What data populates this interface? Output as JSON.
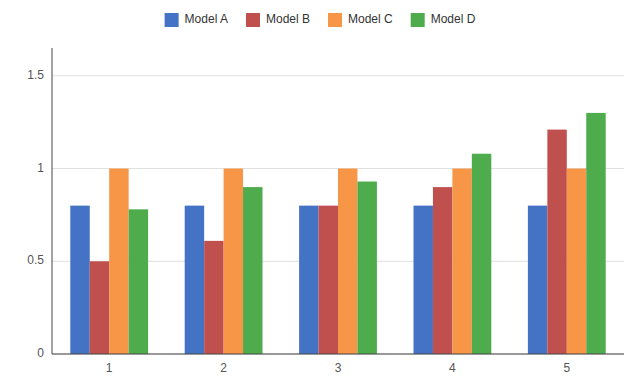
{
  "chart_data": {
    "type": "bar",
    "categories": [
      "1",
      "2",
      "3",
      "4",
      "5"
    ],
    "series": [
      {
        "name": "Model A",
        "color": "#4472C4",
        "values": [
          0.8,
          0.8,
          0.8,
          0.8,
          0.8
        ]
      },
      {
        "name": "Model B",
        "color": "#C0504D",
        "values": [
          0.5,
          0.61,
          0.8,
          0.9,
          1.21
        ]
      },
      {
        "name": "Model C",
        "color": "#F79646",
        "values": [
          1.0,
          1.0,
          1.0,
          1.0,
          1.0
        ]
      },
      {
        "name": "Model D",
        "color": "#4EAC4C",
        "values": [
          0.78,
          0.9,
          0.93,
          1.08,
          1.3
        ]
      }
    ],
    "ylim": [
      0,
      1.65
    ],
    "yticks": [
      0,
      0.5,
      1,
      1.5
    ],
    "grid": true,
    "legend": "top"
  }
}
